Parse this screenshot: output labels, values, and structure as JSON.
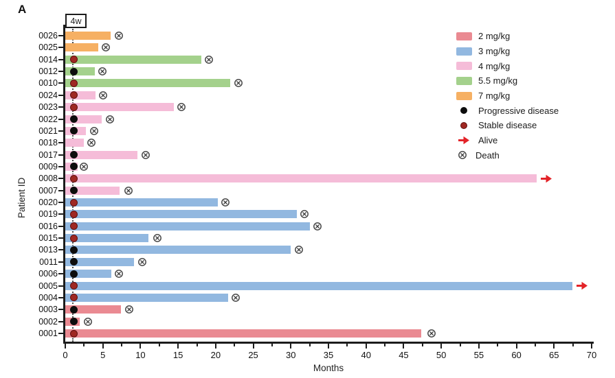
{
  "panel_label": "A",
  "chart_data": {
    "type": "bar",
    "subtype": "horizontal-swimmer",
    "title": "",
    "x_axis": {
      "label": "Months",
      "min": 0,
      "max": 70,
      "major_tick_step": 5,
      "minor_tick_step": 2.5
    },
    "y_axis": {
      "label": "Patient ID"
    },
    "annotation": {
      "label": "4w",
      "month": 1.05
    },
    "response_marker_month": 1.1,
    "dose_colors": {
      "2 mg/kg": "#ea8a92",
      "3 mg/kg": "#92b8e0",
      "4 mg/kg": "#f5bcd8",
      "5.5 mg/kg": "#a4d18c",
      "7 mg/kg": "#f6b063"
    },
    "response_colors": {
      "progressive": "#0d0d0d",
      "stable": "#9f2823"
    },
    "outcome_colors": {
      "death": "#3c3c3c",
      "alive": "#e32328"
    },
    "rows": [
      {
        "id": "0026",
        "dose": "7 mg/kg",
        "months": 6.0,
        "response": null,
        "outcome": "death",
        "outcome_month": 7.1
      },
      {
        "id": "0025",
        "dose": "7 mg/kg",
        "months": 4.4,
        "response": null,
        "outcome": "death",
        "outcome_month": 5.4
      },
      {
        "id": "0014",
        "dose": "5.5 mg/kg",
        "months": 18.1,
        "response": "stable",
        "outcome": "death",
        "outcome_month": 19.1
      },
      {
        "id": "0012",
        "dose": "5.5 mg/kg",
        "months": 3.9,
        "response": "progressive",
        "outcome": "death",
        "outcome_month": 4.9
      },
      {
        "id": "0010",
        "dose": "5.5 mg/kg",
        "months": 21.9,
        "response": "stable",
        "outcome": "death",
        "outcome_month": 23.0
      },
      {
        "id": "0024",
        "dose": "4 mg/kg",
        "months": 4.0,
        "response": "stable",
        "outcome": "death",
        "outcome_month": 5.0
      },
      {
        "id": "0023",
        "dose": "4 mg/kg",
        "months": 14.4,
        "response": "stable",
        "outcome": "death",
        "outcome_month": 15.4
      },
      {
        "id": "0022",
        "dose": "4 mg/kg",
        "months": 4.8,
        "response": "progressive",
        "outcome": "death",
        "outcome_month": 5.9
      },
      {
        "id": "0021",
        "dose": "4 mg/kg",
        "months": 2.7,
        "response": "progressive",
        "outcome": "death",
        "outcome_month": 3.8
      },
      {
        "id": "0018",
        "dose": "4 mg/kg",
        "months": 2.5,
        "response": null,
        "outcome": "death",
        "outcome_month": 3.5
      },
      {
        "id": "0017",
        "dose": "4 mg/kg",
        "months": 9.6,
        "response": "progressive",
        "outcome": "death",
        "outcome_month": 10.7
      },
      {
        "id": "0009",
        "dose": "4 mg/kg",
        "months": 1.6,
        "response": "progressive",
        "outcome": "death",
        "outcome_month": 2.5
      },
      {
        "id": "0008",
        "dose": "4 mg/kg",
        "months": 62.7,
        "response": "stable",
        "outcome": "alive",
        "outcome_month": 63.9
      },
      {
        "id": "0007",
        "dose": "4 mg/kg",
        "months": 7.2,
        "response": "progressive",
        "outcome": "death",
        "outcome_month": 8.4
      },
      {
        "id": "0020",
        "dose": "3 mg/kg",
        "months": 20.3,
        "response": "stable",
        "outcome": "death",
        "outcome_month": 21.3
      },
      {
        "id": "0019",
        "dose": "3 mg/kg",
        "months": 30.8,
        "response": "stable",
        "outcome": "death",
        "outcome_month": 31.8
      },
      {
        "id": "0016",
        "dose": "3 mg/kg",
        "months": 32.5,
        "response": "stable",
        "outcome": "death",
        "outcome_month": 33.5
      },
      {
        "id": "0015",
        "dose": "3 mg/kg",
        "months": 11.1,
        "response": "stable",
        "outcome": "death",
        "outcome_month": 12.2
      },
      {
        "id": "0013",
        "dose": "3 mg/kg",
        "months": 30.0,
        "response": "progressive",
        "outcome": "death",
        "outcome_month": 31.1
      },
      {
        "id": "0011",
        "dose": "3 mg/kg",
        "months": 9.1,
        "response": "progressive",
        "outcome": "death",
        "outcome_month": 10.2
      },
      {
        "id": "0006",
        "dose": "3 mg/kg",
        "months": 6.1,
        "response": "progressive",
        "outcome": "death",
        "outcome_month": 7.1
      },
      {
        "id": "0005",
        "dose": "3 mg/kg",
        "months": 67.4,
        "response": "stable",
        "outcome": "alive",
        "outcome_month": 68.6
      },
      {
        "id": "0004",
        "dose": "3 mg/kg",
        "months": 21.7,
        "response": "stable",
        "outcome": "death",
        "outcome_month": 22.7
      },
      {
        "id": "0003",
        "dose": "2 mg/kg",
        "months": 7.4,
        "response": "progressive",
        "outcome": "death",
        "outcome_month": 8.5
      },
      {
        "id": "0002",
        "dose": "2 mg/kg",
        "months": 1.9,
        "response": "progressive",
        "outcome": "death",
        "outcome_month": 3.0
      },
      {
        "id": "0001",
        "dose": "2 mg/kg",
        "months": 47.3,
        "response": "stable",
        "outcome": "death",
        "outcome_month": 48.7
      }
    ]
  },
  "legend": {
    "items": [
      {
        "label": "2 mg/kg",
        "type": "swatch",
        "color": "#ea8a92"
      },
      {
        "label": "3 mg/kg",
        "type": "swatch",
        "color": "#92b8e0"
      },
      {
        "label": "4 mg/kg",
        "type": "swatch",
        "color": "#f5bcd8"
      },
      {
        "label": "5.5 mg/kg",
        "type": "swatch",
        "color": "#a4d18c"
      },
      {
        "label": "7 mg/kg",
        "type": "swatch",
        "color": "#f6b063"
      },
      {
        "label": "Progressive disease",
        "type": "dot",
        "color": "#0d0d0d"
      },
      {
        "label": "Stable disease",
        "type": "dot",
        "color": "#9f2823"
      },
      {
        "label": "Alive",
        "type": "arrow",
        "color": "#e32328"
      },
      {
        "label": "Death",
        "type": "death",
        "color": "#3c3c3c"
      }
    ]
  }
}
